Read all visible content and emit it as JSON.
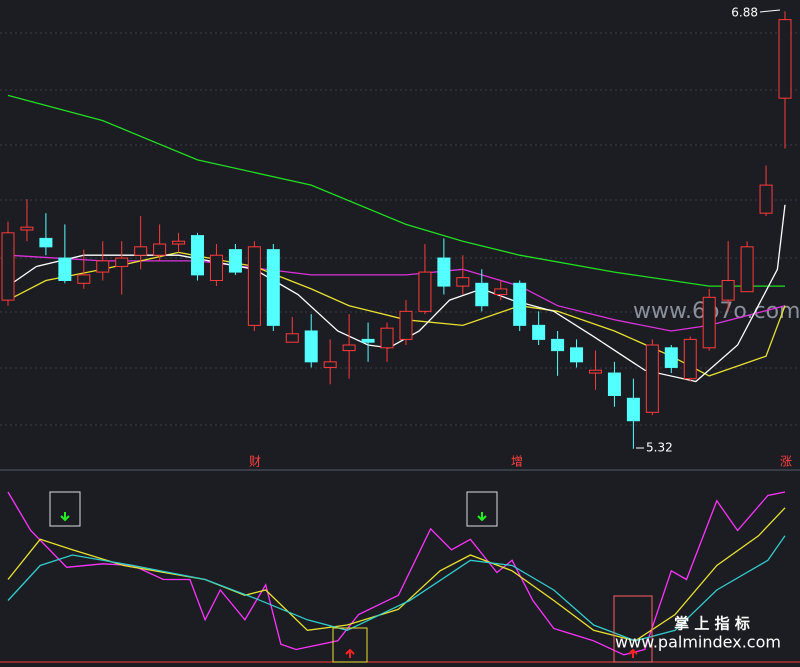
{
  "chart_data": {
    "type": "candlestick",
    "up_color": "#ff3a3a",
    "down_color": "#54ffff",
    "ylim": [
      5.28,
      6.92
    ],
    "open": [
      5.85,
      6.1,
      6.07,
      6.0,
      5.91,
      5.95,
      5.97,
      6.01,
      6.01,
      6.05,
      6.08,
      5.92,
      6.03,
      5.76,
      6.03,
      5.7,
      5.74,
      5.61,
      5.67,
      5.71,
      5.68,
      5.71,
      5.81,
      6.0,
      5.9,
      5.91,
      5.87,
      5.91,
      5.76,
      5.71,
      5.68,
      5.59,
      5.59,
      5.5,
      5.45,
      5.68,
      5.57,
      5.68,
      5.85,
      5.88,
      6.16,
      6.57
    ],
    "high": [
      6.13,
      6.21,
      6.16,
      6.12,
      6.03,
      6.06,
      6.06,
      6.15,
      6.12,
      6.09,
      6.09,
      6.05,
      6.05,
      6.06,
      6.05,
      5.79,
      5.8,
      5.71,
      5.8,
      5.77,
      5.77,
      5.85,
      6.05,
      6.07,
      6.01,
      5.96,
      5.92,
      5.92,
      5.81,
      5.74,
      5.71,
      5.67,
      5.63,
      5.57,
      5.71,
      5.69,
      5.72,
      5.89,
      6.06,
      6.06,
      6.33,
      6.88
    ],
    "low": [
      5.83,
      6.06,
      6.01,
      5.91,
      5.89,
      5.92,
      5.87,
      5.96,
      5.99,
      6.02,
      5.92,
      5.9,
      5.94,
      5.74,
      5.74,
      5.7,
      5.61,
      5.55,
      5.57,
      5.63,
      5.63,
      5.69,
      5.8,
      5.87,
      5.87,
      5.81,
      5.85,
      5.74,
      5.69,
      5.58,
      5.61,
      5.53,
      5.47,
      5.32,
      5.44,
      5.59,
      5.56,
      5.67,
      5.81,
      5.88,
      6.15,
      6.39
    ],
    "close": [
      6.09,
      6.11,
      6.04,
      5.92,
      5.94,
      5.99,
      6.0,
      6.04,
      6.05,
      6.06,
      5.94,
      6.01,
      5.95,
      6.04,
      5.76,
      5.73,
      5.63,
      5.63,
      5.69,
      5.7,
      5.75,
      5.81,
      5.95,
      5.9,
      5.93,
      5.83,
      5.89,
      5.76,
      5.71,
      5.67,
      5.63,
      5.6,
      5.51,
      5.42,
      5.69,
      5.61,
      5.71,
      5.86,
      5.92,
      6.04,
      6.26,
      6.85
    ],
    "lines": [
      {
        "color": "#22dd22",
        "x": [
          0,
          5,
          10,
          16,
          21,
          24,
          27,
          32,
          37,
          41
        ],
        "values": [
          6.58,
          6.49,
          6.35,
          6.26,
          6.12,
          6.06,
          6.01,
          5.95,
          5.9,
          5.9
        ]
      },
      {
        "color": "#dd33dd",
        "x": [
          0,
          5,
          10,
          16,
          21,
          24,
          27,
          29,
          32,
          35,
          37,
          41
        ],
        "values": [
          6.01,
          5.99,
          5.99,
          5.94,
          5.94,
          5.96,
          5.9,
          5.83,
          5.78,
          5.74,
          5.76,
          5.83
        ]
      },
      {
        "color": "#e8e030",
        "x": [
          0,
          2,
          5,
          9,
          13,
          16,
          18,
          21,
          24,
          27,
          29,
          32,
          35,
          37,
          40,
          41
        ],
        "values": [
          5.85,
          5.92,
          5.96,
          6.02,
          5.97,
          5.89,
          5.83,
          5.78,
          5.76,
          5.83,
          5.81,
          5.74,
          5.65,
          5.58,
          5.65,
          5.83
        ]
      },
      {
        "color": "#ffffff",
        "x": [
          0,
          1.5,
          4,
          9,
          13,
          15.3,
          17.4,
          19,
          20.1,
          21.7,
          23.3,
          25,
          26.6,
          28.8,
          30.9,
          33.6,
          36.3,
          38.5,
          40.6,
          41
        ],
        "values": [
          5.9,
          5.97,
          6.01,
          6.01,
          5.96,
          5.87,
          5.74,
          5.69,
          5.68,
          5.74,
          5.85,
          5.89,
          5.85,
          5.81,
          5.72,
          5.6,
          5.56,
          5.69,
          5.96,
          6.19
        ]
      }
    ],
    "annotations": [
      "6.88",
      "5.32"
    ],
    "events": [
      "财",
      "增",
      "涨"
    ],
    "indicator": {
      "ylim": [
        0,
        100
      ],
      "lines": [
        {
          "color": "#ff33ff",
          "x": [
            0,
            1.2,
            3.1,
            5,
            6.6,
            8.2,
            9.6,
            10.4,
            11.2,
            12.5,
            13.6,
            14.4,
            15.2,
            17.4,
            18.5,
            20.6,
            22.3,
            23.4,
            24.4,
            25.8,
            26.6,
            27.7,
            28.8,
            30.9,
            32.5,
            33.6,
            35,
            35.8,
            37.4,
            38.5,
            40.1,
            41
          ],
          "values": [
            96,
            74,
            53,
            55,
            54,
            46,
            46,
            23,
            40,
            23,
            43,
            9,
            6,
            11,
            26,
            37,
            75,
            63,
            69,
            50,
            57,
            34,
            18,
            11,
            3,
            6,
            51,
            46,
            91,
            74,
            94,
            96
          ]
        },
        {
          "color": "#e8e030",
          "x": [
            0,
            1.7,
            3.4,
            6.1,
            10.4,
            12.5,
            13.6,
            15.8,
            17.9,
            20.6,
            22.8,
            24.4,
            26.6,
            28.8,
            30.9,
            33.1,
            35.2,
            37.4,
            39.6,
            41
          ],
          "values": [
            46,
            69,
            63,
            54,
            46,
            37,
            40,
            17,
            20,
            29,
            51,
            60,
            51,
            34,
            17,
            11,
            26,
            54,
            71,
            87
          ]
        },
        {
          "color": "#33cccc",
          "x": [
            0,
            1.7,
            3.4,
            6.6,
            10.4,
            13.1,
            15.8,
            17.9,
            21.2,
            24.4,
            26.6,
            28.8,
            30.9,
            33.1,
            35.2,
            37.4,
            40.1,
            41
          ],
          "values": [
            34,
            54,
            60,
            54,
            46,
            35,
            23,
            17,
            34,
            57,
            54,
            40,
            20,
            11,
            17,
            40,
            57,
            71
          ]
        }
      ]
    },
    "watermarks": [
      "www.6o7o.com",
      "掌 上 指 标",
      "www.palmindex.com"
    ]
  }
}
